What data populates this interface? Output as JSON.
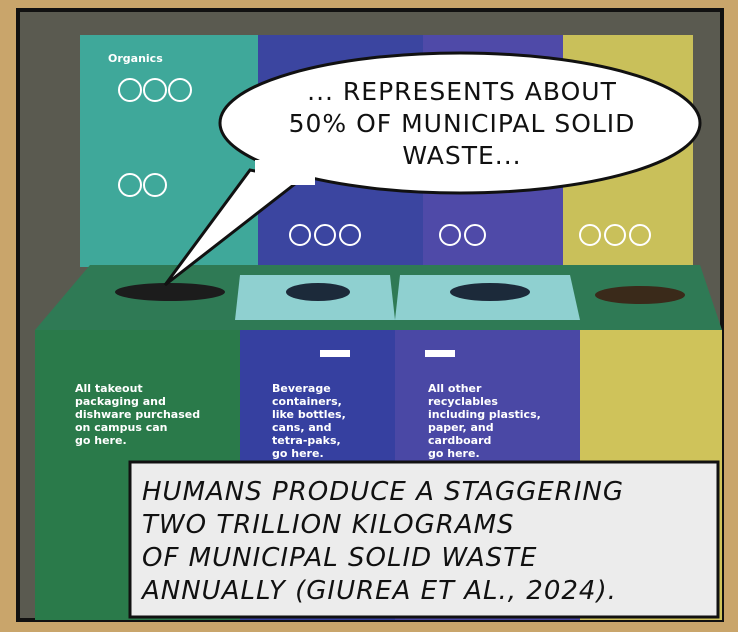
{
  "speech_bubble": {
    "lines": [
      "... REPRESENTS ABOUT",
      "50% OF MUNICIPAL SOLID",
      "WASTE..."
    ]
  },
  "caption": {
    "lines": [
      "HUMANS PRODUCE A STAGGERING",
      "TWO TRILLION KILOGRAMS",
      "OF MUNICIPAL SOLID WASTE",
      "ANNUALLY (GIUREA ET AL., 2024)."
    ]
  },
  "sign": {
    "title": "Organics"
  },
  "bins": [
    {
      "lines": [
        "All takeout",
        "packaging and",
        "dishware purchased",
        "on campus can",
        "go here."
      ]
    },
    {
      "lines": [
        "Beverage",
        "containers,",
        "like bottles,",
        "cans, and",
        "tetra-paks,",
        "go here."
      ]
    },
    {
      "lines": [
        "All other",
        "recyclables",
        "including plastics,",
        "paper, and",
        "cardboard",
        "go here."
      ]
    }
  ]
}
